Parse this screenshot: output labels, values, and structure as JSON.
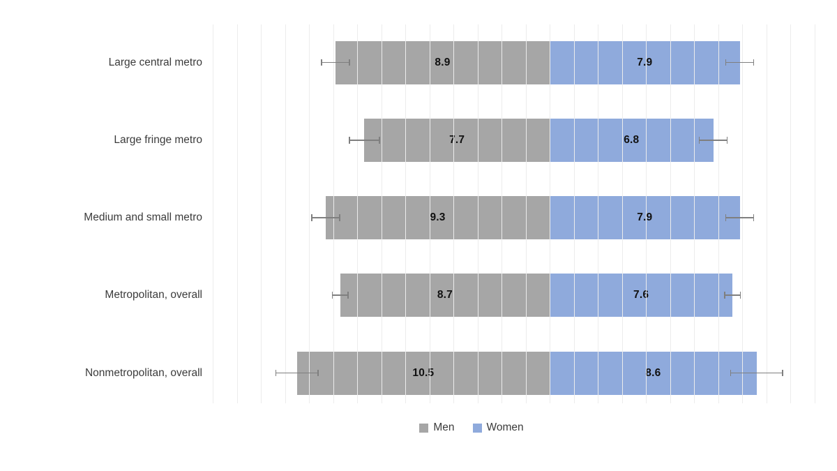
{
  "chart_data": {
    "type": "bar",
    "variant": "diverging-horizontal",
    "title": "",
    "categories": [
      "Large central metro",
      "Large fringe metro",
      "Medium and small metro",
      "Metropolitan, overall",
      "Nonmetropolitan, overall"
    ],
    "series": [
      {
        "name": "Men",
        "color": "#a6a6a6",
        "direction": "left",
        "values": [
          8.9,
          7.7,
          9.3,
          8.7,
          10.5
        ],
        "error_margins": [
          0.6,
          0.65,
          0.6,
          0.35,
          0.9
        ]
      },
      {
        "name": "Women",
        "color": "#8faadc",
        "direction": "right",
        "values": [
          7.9,
          6.8,
          7.9,
          7.6,
          8.6
        ],
        "error_margins": [
          0.6,
          0.6,
          0.6,
          0.35,
          1.1
        ]
      }
    ],
    "axis": {
      "men_axis_max": 14,
      "women_axis_max": 11,
      "grid_step": 1,
      "grid_on": true
    },
    "legend": {
      "position": "bottom-center",
      "items": [
        {
          "label": "Men",
          "color": "#a6a6a6"
        },
        {
          "label": "Women",
          "color": "#8faadc"
        }
      ]
    },
    "colors": {
      "gridline": "#ececec",
      "error_bar": "#7f7f7f",
      "value_label": "#111111",
      "category_label": "#3b3b3b",
      "background": "#ffffff"
    }
  }
}
